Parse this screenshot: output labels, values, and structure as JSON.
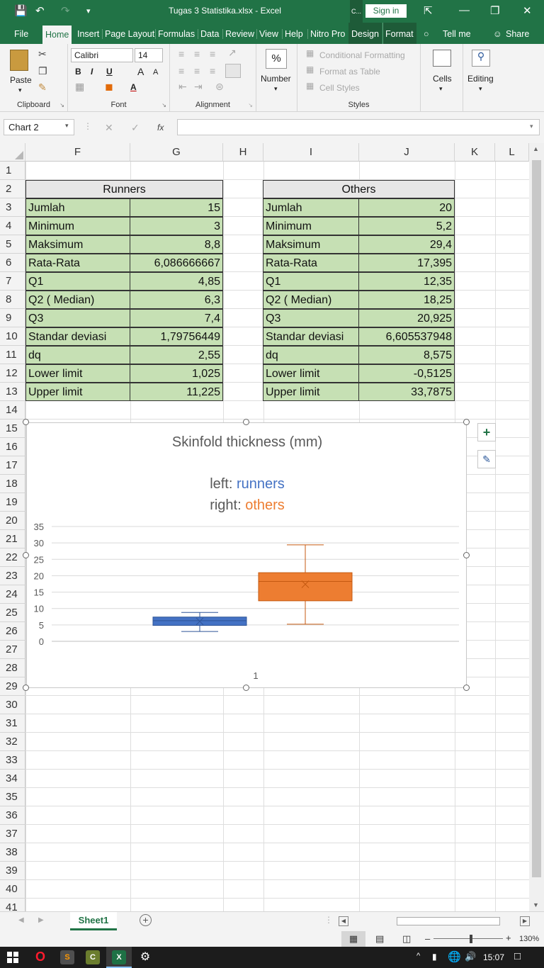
{
  "window": {
    "title": "Tugas 3 Statistika.xlsx  -  Excel",
    "sign_in": "Sign in",
    "context_label": "C..."
  },
  "tabs": [
    "File",
    "Home",
    "Insert",
    "Page Layout",
    "Formulas",
    "Data",
    "Review",
    "View",
    "Help",
    "Nitro Pro",
    "Design",
    "Format"
  ],
  "tell_me": "Tell me",
  "share": "Share",
  "ribbon": {
    "clipboard": {
      "paste": "Paste",
      "label": "Clipboard"
    },
    "font": {
      "name": "Calibri",
      "size": "14",
      "bold": "B",
      "italic": "I",
      "underline": "U",
      "grow": "A",
      "shrink": "A",
      "label": "Font"
    },
    "alignment": {
      "label": "Alignment"
    },
    "number": {
      "percent": "%",
      "label": "Number"
    },
    "styles": {
      "cond": "Conditional Formatting",
      "table": "Format as Table",
      "cell": "Cell Styles",
      "label": "Styles"
    },
    "cells": {
      "label": "Cells"
    },
    "editing": {
      "label": "Editing"
    }
  },
  "namebox": "Chart 2",
  "fx": "fx",
  "columns": [
    "F",
    "G",
    "H",
    "I",
    "J",
    "K",
    "L"
  ],
  "rows": [
    "1",
    "2",
    "3",
    "4",
    "5",
    "6",
    "7",
    "8",
    "9",
    "10",
    "11",
    "12",
    "13",
    "14",
    "15",
    "16",
    "17",
    "18",
    "19",
    "20",
    "21",
    "22",
    "23",
    "24",
    "25",
    "26",
    "27",
    "28",
    "29",
    "30",
    "31",
    "32",
    "33",
    "34",
    "35",
    "36",
    "37",
    "38",
    "39",
    "40",
    "41"
  ],
  "runners": {
    "header": "Runners",
    "rows": [
      [
        "Jumlah",
        "15"
      ],
      [
        "Minimum",
        "3"
      ],
      [
        "Maksimum",
        "8,8"
      ],
      [
        "Rata-Rata",
        "6,086666667"
      ],
      [
        "Q1",
        "4,85"
      ],
      [
        "Q2 ( Median)",
        "6,3"
      ],
      [
        "Q3",
        "7,4"
      ],
      [
        "Standar deviasi",
        "1,79756449"
      ],
      [
        "dq",
        "2,55"
      ],
      [
        "Lower limit",
        "1,025"
      ],
      [
        "Upper limit",
        "11,225"
      ]
    ]
  },
  "others": {
    "header": "Others",
    "rows": [
      [
        "Jumlah",
        "20"
      ],
      [
        "Minimum",
        "5,2"
      ],
      [
        "Maksimum",
        "29,4"
      ],
      [
        "Rata-Rata",
        "17,395"
      ],
      [
        "Q1",
        "12,35"
      ],
      [
        "Q2 ( Median)",
        "18,25"
      ],
      [
        "Q3",
        "20,925"
      ],
      [
        "Standar deviasi",
        "6,605537948"
      ],
      [
        "dq",
        "8,575"
      ],
      [
        "Lower limit",
        "-0,5125"
      ],
      [
        "Upper limit",
        "33,7875"
      ]
    ]
  },
  "chart": {
    "title": "Skinfold thickness (mm)",
    "line1_prefix": "left: ",
    "line1_word": "runners",
    "line2_prefix": "right: ",
    "line2_word": "others",
    "x_label": "1"
  },
  "chart_data": {
    "type": "boxplot",
    "title": "Skinfold thickness (mm)",
    "ylim": [
      0,
      35
    ],
    "yticks": [
      "0",
      "5",
      "10",
      "15",
      "20",
      "25",
      "30",
      "35"
    ],
    "categories": [
      "1"
    ],
    "grid": true,
    "series": [
      {
        "name": "runners",
        "color": "#4472c4",
        "min": 3,
        "q1": 4.85,
        "median": 6.3,
        "q3": 7.4,
        "max": 8.8,
        "mean": 6.086666667
      },
      {
        "name": "others",
        "color": "#ed7d31",
        "min": 5.2,
        "q1": 12.35,
        "median": 18.25,
        "q3": 20.925,
        "max": 29.4,
        "mean": 17.395
      }
    ]
  },
  "sheet_tab": "Sheet1",
  "zoom": "130%",
  "clock": "15:07"
}
